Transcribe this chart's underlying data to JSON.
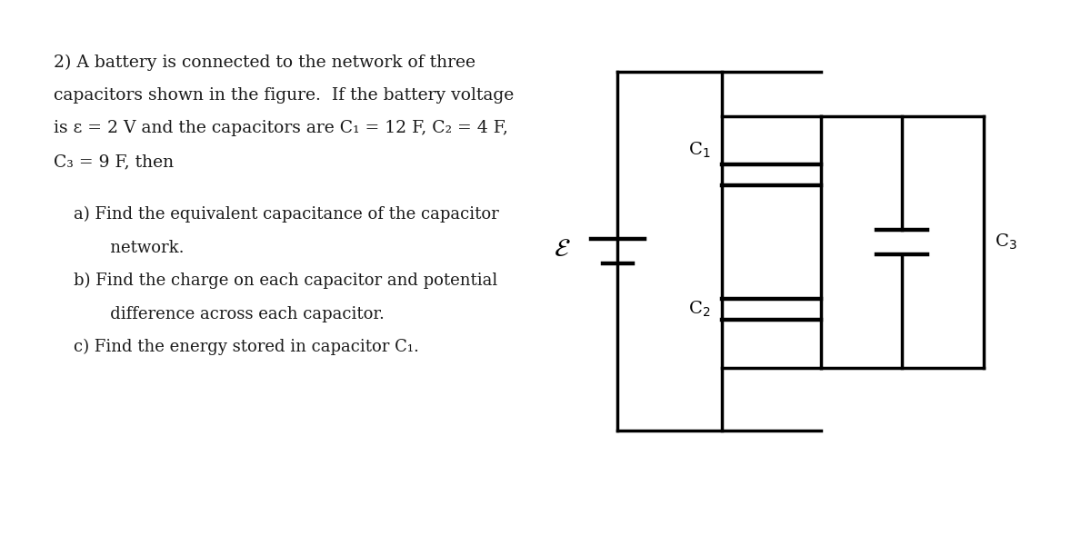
{
  "background_color": "#ffffff",
  "text_color": "#1a1a1a",
  "main_text_line1": "2) A battery is connected to the network of three",
  "main_text_line2": "capacitors shown in the figure.  If the battery voltage",
  "main_text_line3": "is ε = 2 V and the capacitors are C₁ = 12 F, C₂ = 4 F,",
  "main_text_line4": "C₃ = 9 F, then",
  "sub_a": "a) Find the equivalent capacitance of the capacitor",
  "sub_a2": "       network.",
  "sub_b": "b) Find the charge on each capacitor and potential",
  "sub_b2": "       difference across each capacitor.",
  "sub_c": "c) Find the energy stored in capacitor C₁.",
  "font_size_main": 13.5,
  "font_size_sub": 13.0
}
